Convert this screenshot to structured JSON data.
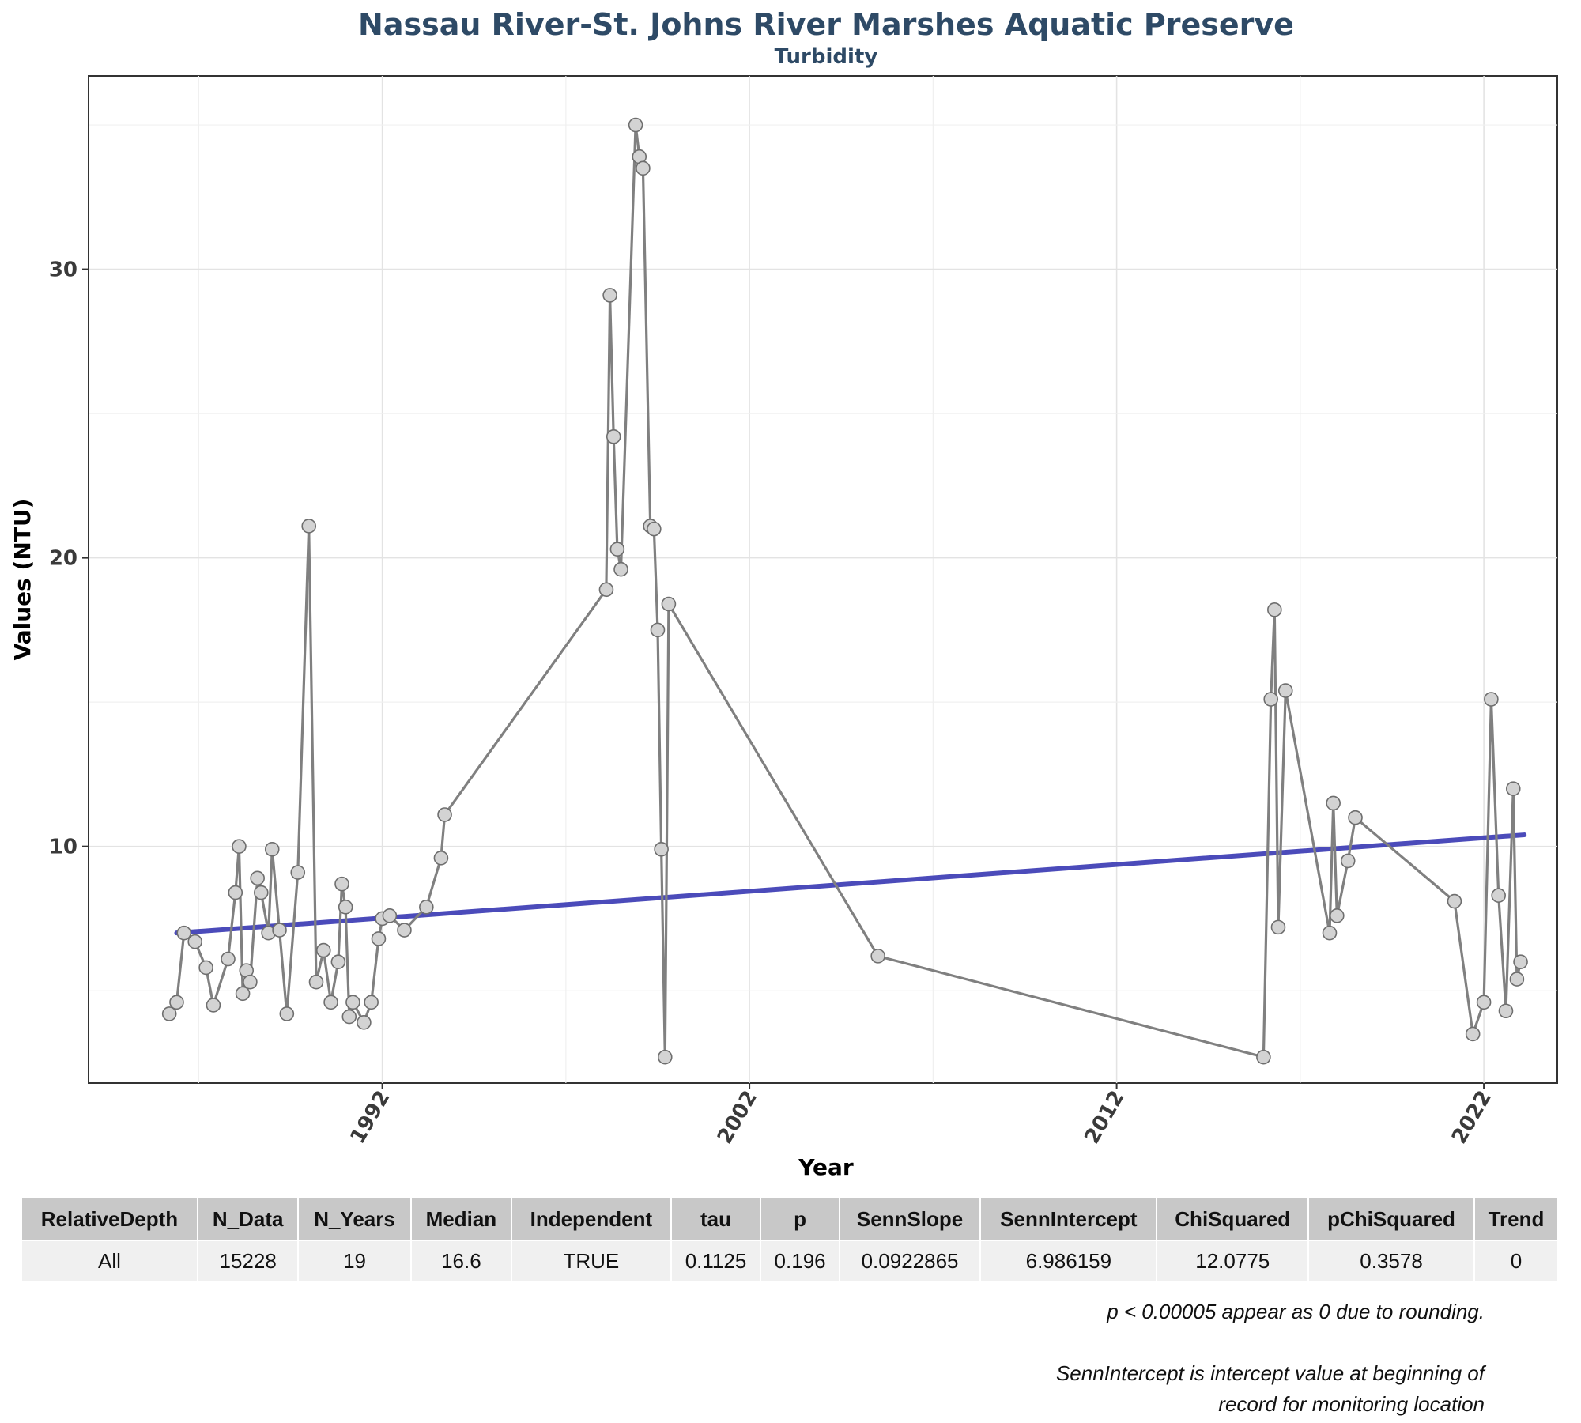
{
  "chart_data": {
    "type": "line",
    "title": "Nassau River-St. Johns River Marshes Aquatic Preserve",
    "subtitle": "Turbidity",
    "xlabel": "Year",
    "ylabel": "Values (NTU)",
    "xlim": [
      1984,
      2024
    ],
    "ylim": [
      1.8,
      36.7
    ],
    "x_ticks": [
      1992,
      2002,
      2012,
      2022
    ],
    "y_ticks": [
      10,
      20,
      30
    ],
    "grid": true,
    "colors": {
      "line": "#808080",
      "point_fill": "#d3d3d3",
      "point_stroke": "#6e6e6e",
      "trend": "#3c3cb4"
    },
    "series": [
      {
        "x": [
          1986.2,
          1986.4,
          1986.6,
          1986.9,
          1987.2,
          1987.4,
          1987.8,
          1988.0,
          1988.1,
          1988.2,
          1988.3,
          1988.4,
          1988.6,
          1988.7,
          1988.9,
          1989.0,
          1989.2,
          1989.4,
          1989.7,
          1990.0,
          1990.2,
          1990.4,
          1990.6,
          1990.8,
          1990.9,
          1991.0,
          1991.1,
          1991.2,
          1991.5,
          1991.7,
          1991.9,
          1992.0,
          1992.2,
          1992.6,
          1993.2,
          1993.6,
          1993.7,
          1998.1,
          1998.2,
          1998.3,
          1998.4,
          1998.5,
          1998.9,
          1999.0,
          1999.1,
          1999.3,
          1999.4,
          1999.5,
          1999.6,
          1999.7,
          1999.8,
          2005.5,
          2016.0,
          2016.2,
          2016.3,
          2016.4,
          2016.6,
          2017.8,
          2017.9,
          2018.0,
          2018.3,
          2018.5,
          2021.2,
          2021.7,
          2022.0,
          2022.2,
          2022.4,
          2022.6,
          2022.8,
          2022.9,
          2023.0
        ],
        "y": [
          4.2,
          4.6,
          7.0,
          6.7,
          5.8,
          4.5,
          6.1,
          8.4,
          10.0,
          4.9,
          5.7,
          5.3,
          8.9,
          8.4,
          7.0,
          9.9,
          7.1,
          4.2,
          9.1,
          21.1,
          5.3,
          6.4,
          4.6,
          6.0,
          8.7,
          7.9,
          4.1,
          4.6,
          3.9,
          4.6,
          6.8,
          7.5,
          7.6,
          7.1,
          7.9,
          9.6,
          11.1,
          18.9,
          29.1,
          24.2,
          20.3,
          19.6,
          35.0,
          33.9,
          33.5,
          21.1,
          21.0,
          17.5,
          9.9,
          2.7,
          18.4,
          6.2,
          2.7,
          15.1,
          18.2,
          7.2,
          15.4,
          7.0,
          11.5,
          7.6,
          9.5,
          11.0,
          8.1,
          3.5,
          4.6,
          15.1,
          8.3,
          4.3,
          12.0,
          5.4,
          6.0
        ]
      }
    ],
    "trend_line": {
      "x": [
        1986.4,
        2023.1
      ],
      "y": [
        7.0,
        10.4
      ]
    }
  },
  "table": {
    "headers": [
      "RelativeDepth",
      "N_Data",
      "N_Years",
      "Median",
      "Independent",
      "tau",
      "p",
      "SennSlope",
      "SennIntercept",
      "ChiSquared",
      "pChiSquared",
      "Trend"
    ],
    "rows": [
      [
        "All",
        "15228",
        "19",
        "16.6",
        "TRUE",
        "0.1125",
        "0.196",
        "0.0922865",
        "6.986159",
        "12.0775",
        "0.3578",
        "0"
      ]
    ]
  },
  "notes": {
    "line1": "p < 0.00005 appear as 0 due to rounding.",
    "line2": "SennIntercept is intercept value at beginning of",
    "line3": "record for monitoring location"
  }
}
